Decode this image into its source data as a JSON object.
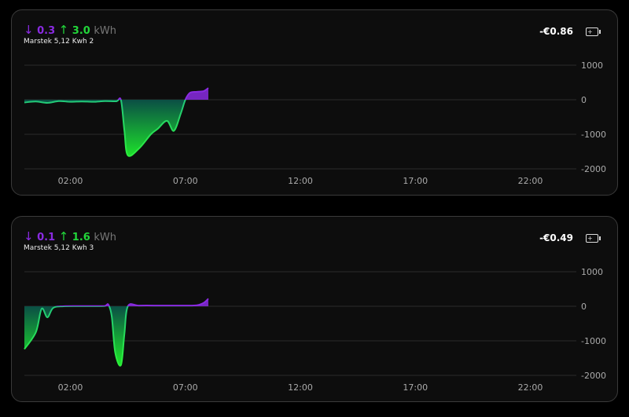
{
  "colors": {
    "import": "#8a2be2",
    "export": "#22d63a",
    "grid": "#2c2c2c"
  },
  "cards": [
    {
      "import_value": "0.3",
      "export_value": "3.0",
      "unit": "kWh",
      "name": "Marstek 5,12 Kwh 2",
      "cost": "-€0.86",
      "icon": "battery-charging-icon"
    },
    {
      "import_value": "0.1",
      "export_value": "1.6",
      "unit": "kWh",
      "name": "Marstek 5,12 Kwh 3",
      "cost": "-€0.49",
      "icon": "battery-charging-icon"
    }
  ],
  "arrows": {
    "down": "↓",
    "up": "↑",
    "battery": "+"
  },
  "chart_data": [
    {
      "type": "area",
      "xlabel": "",
      "ylabel": "",
      "xlim": [
        0,
        24
      ],
      "ylim": [
        -2000,
        1000
      ],
      "grid": true,
      "x_ticks": [
        {
          "v": 2,
          "label": "02:00"
        },
        {
          "v": 7,
          "label": "07:00"
        },
        {
          "v": 12,
          "label": "12:00"
        },
        {
          "v": 17,
          "label": "17:00"
        },
        {
          "v": 22,
          "label": "22:00"
        }
      ],
      "y_ticks": [
        {
          "v": 1000,
          "label": "1000"
        },
        {
          "v": 0,
          "label": "0"
        },
        {
          "v": -1000,
          "label": "-1000"
        },
        {
          "v": -2000,
          "label": "-2000"
        }
      ],
      "x": [
        0,
        0.5,
        1,
        1.5,
        2,
        2.5,
        3,
        3.5,
        4,
        4.2,
        4.35,
        4.5,
        5,
        5.5,
        5.8,
        6.2,
        6.5,
        6.8,
        7,
        7.2,
        7.5,
        7.8,
        8
      ],
      "y": [
        -80,
        -50,
        -90,
        -40,
        -60,
        -50,
        -60,
        -40,
        -45,
        -10,
        -900,
        -1610,
        -1400,
        -1000,
        -840,
        -610,
        -900,
        -400,
        0,
        200,
        230,
        250,
        340
      ]
    },
    {
      "type": "area",
      "xlabel": "",
      "ylabel": "",
      "xlim": [
        0,
        24
      ],
      "ylim": [
        -2000,
        1000
      ],
      "grid": true,
      "x_ticks": [
        {
          "v": 2,
          "label": "02:00"
        },
        {
          "v": 7,
          "label": "07:00"
        },
        {
          "v": 12,
          "label": "12:00"
        },
        {
          "v": 17,
          "label": "17:00"
        },
        {
          "v": 22,
          "label": "22:00"
        }
      ],
      "y_ticks": [
        {
          "v": 1000,
          "label": "1000"
        },
        {
          "v": 0,
          "label": "0"
        },
        {
          "v": -1000,
          "label": "-1000"
        },
        {
          "v": -2000,
          "label": "-2000"
        }
      ],
      "x": [
        0,
        0.5,
        0.75,
        1,
        1.25,
        1.7,
        2.5,
        3,
        3.5,
        3.65,
        3.8,
        3.95,
        4.2,
        4.35,
        4.5,
        5,
        6,
        7,
        7.5,
        7.8,
        8
      ],
      "y": [
        -1240,
        -750,
        -70,
        -320,
        -50,
        0,
        5,
        5,
        10,
        50,
        -300,
        -1340,
        -1700,
        -800,
        0,
        20,
        20,
        20,
        30,
        100,
        220
      ]
    }
  ]
}
